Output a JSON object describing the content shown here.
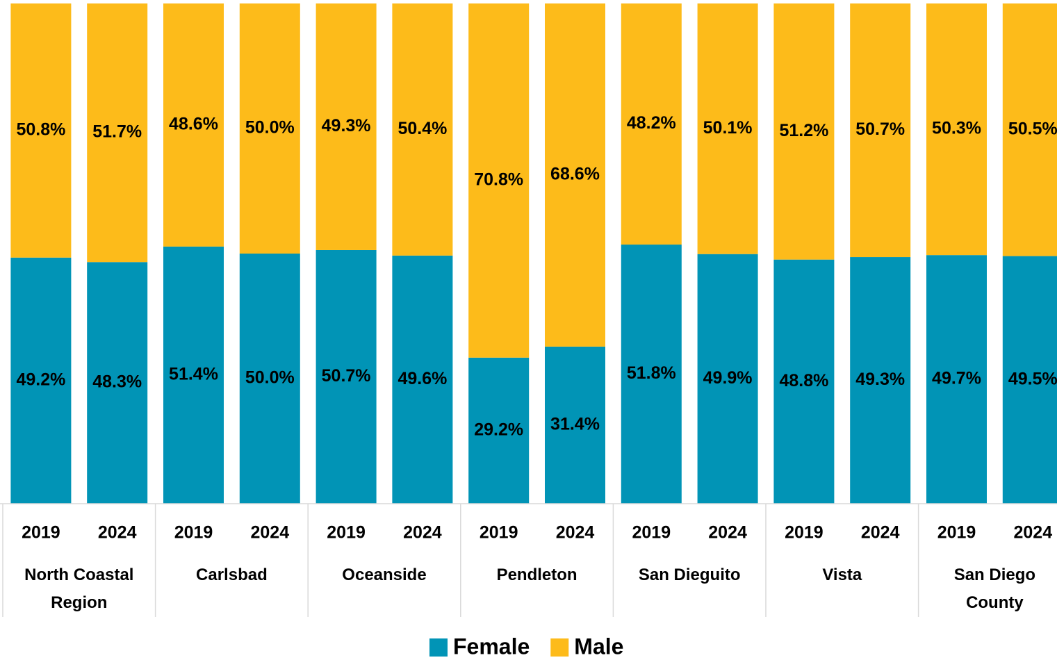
{
  "chart_data": {
    "type": "stacked-bar",
    "categories": [
      "2019",
      "2024",
      "2019",
      "2024",
      "2019",
      "2024",
      "2019",
      "2024",
      "2019",
      "2024",
      "2019",
      "2024",
      "2019",
      "2024"
    ],
    "groups": [
      "North Coastal Region",
      "Carlsbad",
      "Oceanside",
      "Pendleton",
      "San Dieguito",
      "Vista",
      "San Diego County"
    ],
    "ylim": [
      0,
      100
    ],
    "legend": "bottom",
    "series": [
      {
        "name": "Female",
        "color": "#0194b6",
        "values": [
          49.2,
          48.3,
          51.4,
          50.0,
          50.7,
          49.6,
          29.2,
          31.4,
          51.8,
          49.9,
          48.8,
          49.3,
          49.7,
          49.5
        ],
        "value_labels": [
          "49.2%",
          "48.3%",
          "51.4%",
          "50.0%",
          "50.7%",
          "49.6%",
          "29.2%",
          "31.4%",
          "51.8%",
          "49.9%",
          "48.8%",
          "49.3%",
          "49.7%",
          "49.5%"
        ]
      },
      {
        "name": "Male",
        "color": "#fdbb1a",
        "values": [
          50.8,
          51.7,
          48.6,
          50.0,
          49.3,
          50.4,
          70.8,
          68.6,
          48.2,
          50.1,
          51.2,
          50.7,
          50.3,
          50.5
        ],
        "value_labels": [
          "50.8%",
          "51.7%",
          "48.6%",
          "50.0%",
          "49.3%",
          "50.4%",
          "70.8%",
          "68.6%",
          "48.2%",
          "50.1%",
          "51.2%",
          "50.7%",
          "50.3%",
          "50.5%"
        ]
      }
    ]
  }
}
